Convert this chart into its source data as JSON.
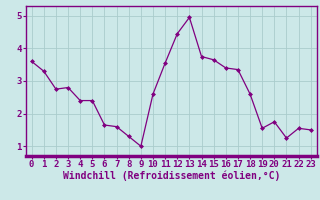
{
  "x": [
    0,
    1,
    2,
    3,
    4,
    5,
    6,
    7,
    8,
    9,
    10,
    11,
    12,
    13,
    14,
    15,
    16,
    17,
    18,
    19,
    20,
    21,
    22,
    23
  ],
  "y": [
    3.6,
    3.3,
    2.75,
    2.8,
    2.4,
    2.4,
    1.65,
    1.6,
    1.3,
    1.0,
    2.6,
    3.55,
    4.45,
    4.95,
    3.75,
    3.65,
    3.4,
    3.35,
    2.6,
    1.55,
    1.75,
    1.25,
    1.55,
    1.5
  ],
  "line_color": "#800080",
  "marker": "D",
  "marker_size": 2,
  "bg_color": "#cce8e8",
  "grid_color": "#aacccc",
  "xlabel": "Windchill (Refroidissement éolien,°C)",
  "xlim": [
    -0.5,
    23.5
  ],
  "ylim": [
    0.7,
    5.3
  ],
  "yticks": [
    1,
    2,
    3,
    4,
    5
  ],
  "xticks": [
    0,
    1,
    2,
    3,
    4,
    5,
    6,
    7,
    8,
    9,
    10,
    11,
    12,
    13,
    14,
    15,
    16,
    17,
    18,
    19,
    20,
    21,
    22,
    23
  ],
  "xlabel_fontsize": 7,
  "tick_fontsize": 6.5,
  "spine_color": "#800080",
  "axis_color": "#800080",
  "bottom_bar_color": "#800080"
}
